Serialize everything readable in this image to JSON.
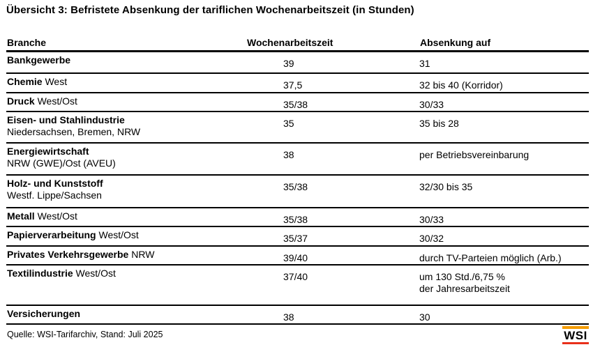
{
  "title": "Übersicht 3: Befristete Absenkung der tariflichen Wochenarbeitszeit (in Stunden)",
  "table": {
    "columns": [
      "Branche",
      "Wochenarbeitszeit",
      "Absenkung auf"
    ],
    "rows": [
      {
        "branch": "Bankgewerbe",
        "branch_suffix": "",
        "branch_sub": "",
        "hours": "39",
        "reduction": "31",
        "reduction_line2": ""
      },
      {
        "branch": "Chemie",
        "branch_suffix": " West",
        "branch_sub": "",
        "hours": "37,5",
        "reduction": "32 bis 40 (Korridor)",
        "reduction_line2": ""
      },
      {
        "branch": "Druck",
        "branch_suffix": " West/Ost",
        "branch_sub": "",
        "hours": "35/38",
        "reduction": "30/33",
        "reduction_line2": ""
      },
      {
        "branch": "Eisen- und Stahlindustrie",
        "branch_suffix": "",
        "branch_sub": "Niedersachsen, Bremen, NRW",
        "hours": "35",
        "reduction": "35 bis 28",
        "reduction_line2": ""
      },
      {
        "branch": "Energiewirtschaft",
        "branch_suffix": "",
        "branch_sub": "NRW (GWE)/Ost (AVEU)",
        "hours": "38",
        "reduction": "per Betriebsvereinbarung",
        "reduction_line2": ""
      },
      {
        "branch": "Holz- und Kunststoff",
        "branch_suffix": "",
        "branch_sub": "Westf. Lippe/Sachsen",
        "hours": "35/38",
        "reduction": "32/30 bis 35",
        "reduction_line2": ""
      },
      {
        "branch": "Metall",
        "branch_suffix": " West/Ost",
        "branch_sub": "",
        "hours": "35/38",
        "reduction": "30/33",
        "reduction_line2": ""
      },
      {
        "branch": "Papierverarbeitung",
        "branch_suffix": " West/Ost",
        "branch_sub": "",
        "hours": "35/37",
        "reduction": "30/32",
        "reduction_line2": ""
      },
      {
        "branch": "Privates Verkehrsgewerbe",
        "branch_suffix": " NRW",
        "branch_sub": "",
        "hours": "39/40",
        "reduction": "durch TV-Parteien möglich (Arb.)",
        "reduction_line2": ""
      },
      {
        "branch": "Textilindustrie",
        "branch_suffix": " West/Ost",
        "branch_sub": "",
        "hours": "37/40",
        "reduction": "um 130 Std./6,75 %",
        "reduction_line2": "der Jahresarbeitszeit"
      },
      {
        "branch": "Versicherungen",
        "branch_suffix": "",
        "branch_sub": "",
        "hours": "38",
        "reduction": "30",
        "reduction_line2": ""
      }
    ]
  },
  "footer": {
    "source": "Quelle: WSI-Tarifarchiv, Stand: Juli 2025"
  },
  "logo": {
    "text": "WSI",
    "bar_top_color": "#F59C00",
    "bar_bottom_color": "#E8301A"
  }
}
